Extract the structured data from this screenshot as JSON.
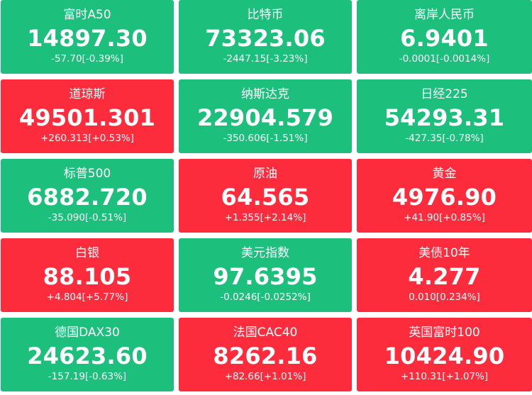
{
  "colors": {
    "up": "#fd2c3d",
    "down": "#1dbf7c",
    "text": "#ffffff"
  },
  "tiles": [
    {
      "name": "富时A50",
      "value": "14897.30",
      "change": "-57.70[-0.39%]",
      "trend": "down"
    },
    {
      "name": "比特币",
      "value": "73323.06",
      "change": "-2447.15[-3.23%]",
      "trend": "down"
    },
    {
      "name": "离岸人民币",
      "value": "6.9401",
      "change": "-0.0001[-0.0014%]",
      "trend": "down"
    },
    {
      "name": "道琼斯",
      "value": "49501.301",
      "change": "+260.313[+0.53%]",
      "trend": "up"
    },
    {
      "name": "纳斯达克",
      "value": "22904.579",
      "change": "-350.606[-1.51%]",
      "trend": "down"
    },
    {
      "name": "日经225",
      "value": "54293.31",
      "change": "-427.35[-0.78%]",
      "trend": "down"
    },
    {
      "name": "标普500",
      "value": "6882.720",
      "change": "-35.090[-0.51%]",
      "trend": "down"
    },
    {
      "name": "原油",
      "value": "64.565",
      "change": "+1.355[+2.14%]",
      "trend": "up"
    },
    {
      "name": "黄金",
      "value": "4976.90",
      "change": "+41.90[+0.85%]",
      "trend": "up"
    },
    {
      "name": "白银",
      "value": "88.105",
      "change": "+4.804[+5.77%]",
      "trend": "up"
    },
    {
      "name": "美元指数",
      "value": "97.6395",
      "change": "-0.0246[-0.0252%]",
      "trend": "down"
    },
    {
      "name": "美债10年",
      "value": "4.277",
      "change": "0.010[0.234%]",
      "trend": "up"
    },
    {
      "name": "德国DAX30",
      "value": "24623.60",
      "change": "-157.19[-0.63%]",
      "trend": "down"
    },
    {
      "name": "法国CAC40",
      "value": "8262.16",
      "change": "+82.66[+1.01%]",
      "trend": "up"
    },
    {
      "name": "英国富时100",
      "value": "10424.90",
      "change": "+110.31[+1.07%]",
      "trend": "up"
    }
  ]
}
